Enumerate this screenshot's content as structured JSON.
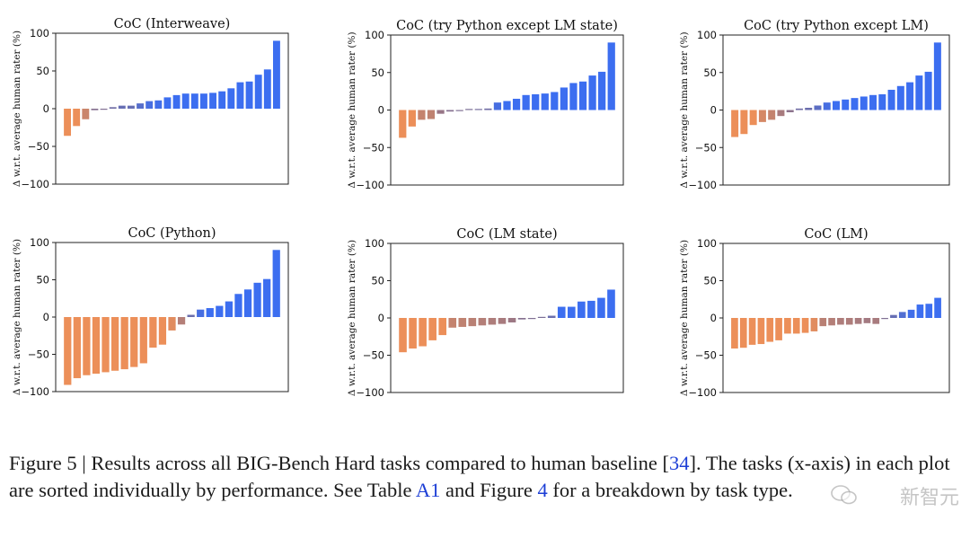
{
  "chart_data": [
    {
      "type": "bar",
      "title": "CoC (Interweave)",
      "ylabel": "Δ w.r.t. average human rater (%)",
      "ylim": [
        -100,
        100
      ],
      "yticks": [
        "100",
        "50",
        "0",
        "−50",
        "−100"
      ],
      "values": [
        -36,
        -23,
        -14,
        -2,
        -1,
        2,
        4,
        4,
        7,
        10,
        11,
        15,
        18,
        20,
        20,
        20,
        21,
        23,
        27,
        35,
        36,
        45,
        52,
        90
      ]
    },
    {
      "type": "bar",
      "title": "CoC (try Python except LM state)",
      "ylabel": "Δ w.r.t. average human rater (%)",
      "ylim": [
        -100,
        100
      ],
      "yticks": [
        "100",
        "50",
        "0",
        "−50",
        "−100"
      ],
      "values": [
        -37,
        -22,
        -13,
        -12,
        -5,
        -2,
        -1,
        0,
        1,
        2,
        10,
        12,
        15,
        20,
        21,
        22,
        24,
        30,
        36,
        38,
        46,
        51,
        90
      ]
    },
    {
      "type": "bar",
      "title": "CoC (try Python except LM)",
      "ylabel": "Δ w.r.t. average human rater (%)",
      "ylim": [
        -100,
        100
      ],
      "yticks": [
        "100",
        "50",
        "0",
        "−50",
        "−100"
      ],
      "values": [
        -36,
        -32,
        -20,
        -16,
        -13,
        -8,
        -3,
        2,
        3,
        6,
        10,
        12,
        14,
        16,
        18,
        20,
        21,
        27,
        32,
        37,
        46,
        51,
        90
      ]
    },
    {
      "type": "bar",
      "title": "CoC (Python)",
      "ylabel": "Δ w.r.t. average human rater (%)",
      "ylim": [
        -100,
        100
      ],
      "yticks": [
        "100",
        "50",
        "0",
        "−50",
        "−100"
      ],
      "values": [
        -91,
        -82,
        -78,
        -76,
        -74,
        -72,
        -70,
        -67,
        -62,
        -41,
        -37,
        -18,
        -10,
        3,
        10,
        12,
        15,
        21,
        31,
        37,
        46,
        51,
        90
      ]
    },
    {
      "type": "bar",
      "title": "CoC (LM state)",
      "ylabel": "Δ w.r.t. average human rater (%)",
      "ylim": [
        -100,
        100
      ],
      "yticks": [
        "100",
        "50",
        "0",
        "−50",
        "−100"
      ],
      "values": [
        -46,
        -41,
        -38,
        -30,
        -23,
        -13,
        -12,
        -11,
        -10,
        -9,
        -8,
        -6,
        -2,
        -1,
        0,
        3,
        15,
        15,
        22,
        23,
        27,
        38
      ]
    },
    {
      "type": "bar",
      "title": "CoC (LM)",
      "ylabel": "Δ w.r.t. average human rater (%)",
      "ylim": [
        -100,
        100
      ],
      "yticks": [
        "100",
        "50",
        "0",
        "−50",
        "−100"
      ],
      "values": [
        -41,
        -40,
        -36,
        -35,
        -32,
        -30,
        -21,
        -21,
        -20,
        -18,
        -11,
        -10,
        -9,
        -9,
        -8,
        -7,
        -8,
        -1,
        4,
        8,
        11,
        18,
        19,
        27
      ]
    }
  ],
  "caption": {
    "prefix": "Figure 5 | Results across all BIG-Bench Hard tasks compared to human baseline [",
    "ref1": "34",
    "mid1": "]. The tasks (x-axis) in each plot are sorted individually by performance. See Table ",
    "ref2": "A1",
    "mid2": " and Figure ",
    "ref3": "4",
    "suffix": " for a breakdown by task type."
  },
  "watermark": "新智元",
  "colors": {
    "positive": "#3c6ef0",
    "negative": "#ec8f59",
    "neutral": "#7b6e96"
  }
}
